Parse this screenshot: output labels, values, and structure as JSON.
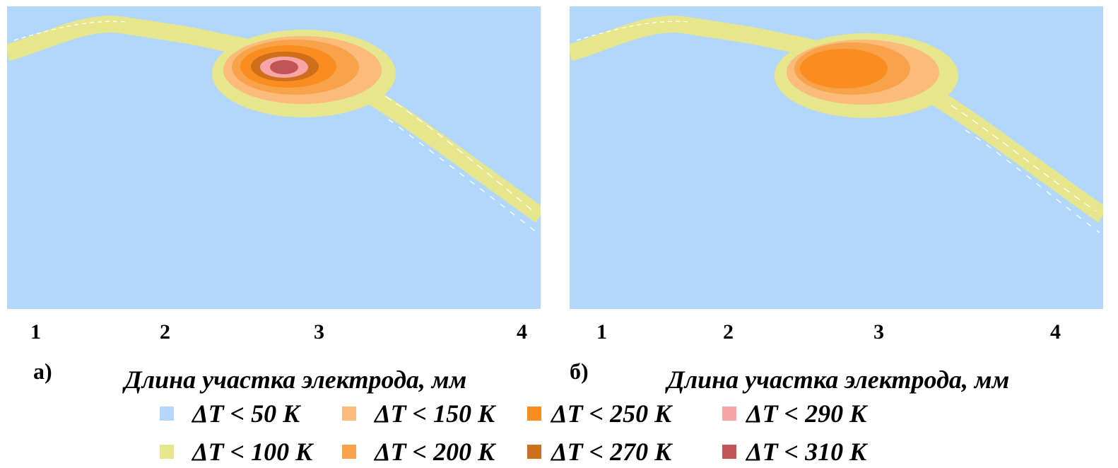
{
  "chart_data": {
    "type": "heatmap",
    "xlabel": "Длина участка электрода, мм",
    "x_ticks": [
      "1",
      "2",
      "3",
      "4"
    ],
    "panels": [
      {
        "label": "а)",
        "max_level": "ΔT < 310 K"
      },
      {
        "label": "б)",
        "max_level": "ΔT < 250 K"
      }
    ],
    "levels": [
      {
        "label": "ΔT < 50 K",
        "threshold_K": 50,
        "color": "#b3d7fb"
      },
      {
        "label": "ΔT < 100 K",
        "threshold_K": 100,
        "color": "#e6e68c"
      },
      {
        "label": "ΔT < 150 K",
        "threshold_K": 150,
        "color": "#fbbb7b"
      },
      {
        "label": "ΔT < 200 K",
        "threshold_K": 200,
        "color": "#f8a24a"
      },
      {
        "label": "ΔT < 250 K",
        "threshold_K": 250,
        "color": "#f98d1f"
      },
      {
        "label": "ΔT < 270 K",
        "threshold_K": 270,
        "color": "#cf6f1b"
      },
      {
        "label": "ΔT < 290 K",
        "threshold_K": 290,
        "color": "#f7a5a6"
      },
      {
        "label": "ΔT < 310 K",
        "threshold_K": 310,
        "color": "#c25356"
      }
    ]
  }
}
